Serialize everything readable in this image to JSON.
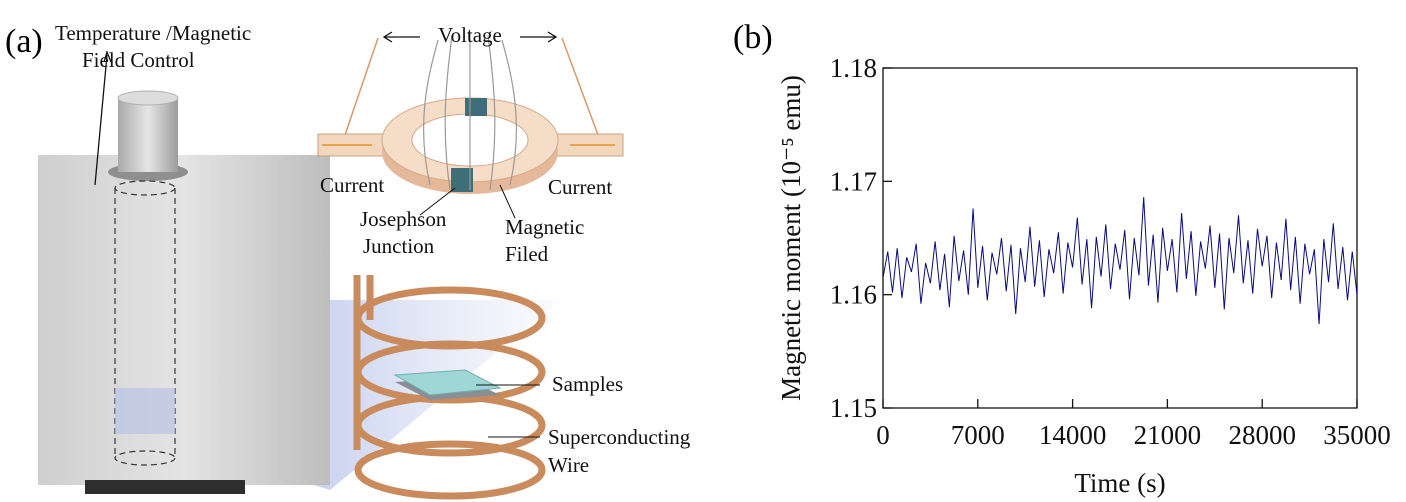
{
  "panel_a": {
    "label": "(a)",
    "control": [
      "Temperature /Magnetic",
      "Field Control"
    ],
    "voltage": "Voltage",
    "current_left": "Current",
    "current_right": "Current",
    "junction": [
      "Josephson",
      "Junction"
    ],
    "field": [
      "Magnetic",
      "Filed"
    ],
    "samples": "Samples",
    "wire": [
      "Superconducting",
      "Wire"
    ]
  },
  "chart_data": {
    "type": "line",
    "panel_label": "(b)",
    "x_label": "Time (s)",
    "y_label": "Magnetic moment (10⁻⁵ emu)",
    "color": "#0b0b7a",
    "x": [
      0,
      350,
      700,
      1050,
      1400,
      1750,
      2100,
      2450,
      2800,
      3150,
      3500,
      3850,
      4200,
      4550,
      4900,
      5250,
      5600,
      5950,
      6300,
      6650,
      7000,
      7350,
      7700,
      8050,
      8400,
      8750,
      9100,
      9450,
      9800,
      10150,
      10500,
      10850,
      11200,
      11550,
      11900,
      12250,
      12600,
      12950,
      13300,
      13650,
      14000,
      14350,
      14700,
      15050,
      15400,
      15750,
      16100,
      16450,
      16800,
      17150,
      17500,
      17850,
      18200,
      18550,
      18900,
      19250,
      19600,
      19950,
      20300,
      20650,
      21000,
      21350,
      21700,
      22050,
      22400,
      22750,
      23100,
      23450,
      23800,
      24150,
      24500,
      24850,
      25200,
      25550,
      25900,
      26250,
      26600,
      26950,
      27300,
      27650,
      28000,
      28350,
      28700,
      29050,
      29400,
      29750,
      30100,
      30450,
      30800,
      31150,
      31500,
      31850,
      32200,
      32550,
      32900,
      33250,
      33600,
      33950,
      34300,
      34650,
      35000
    ],
    "values": [
      1.1615,
      1.1638,
      1.1602,
      1.1641,
      1.1597,
      1.1633,
      1.162,
      1.1645,
      1.1592,
      1.1628,
      1.161,
      1.1647,
      1.1604,
      1.1636,
      1.1589,
      1.1652,
      1.1612,
      1.1639,
      1.16,
      1.1676,
      1.1606,
      1.1643,
      1.1595,
      1.1637,
      1.1618,
      1.165,
      1.1603,
      1.1644,
      1.1583,
      1.1641,
      1.1611,
      1.166,
      1.1607,
      1.1648,
      1.1598,
      1.164,
      1.1619,
      1.1655,
      1.1601,
      1.1646,
      1.1624,
      1.1668,
      1.1609,
      1.1649,
      1.1588,
      1.1651,
      1.1616,
      1.1662,
      1.1605,
      1.1645,
      1.1622,
      1.1657,
      1.1596,
      1.165,
      1.1617,
      1.1686,
      1.1608,
      1.1653,
      1.1593,
      1.1659,
      1.1621,
      1.1649,
      1.1602,
      1.1672,
      1.1614,
      1.1656,
      1.1599,
      1.1647,
      1.1623,
      1.1661,
      1.1606,
      1.1654,
      1.1587,
      1.165,
      1.1619,
      1.167,
      1.161,
      1.1648,
      1.1601,
      1.1658,
      1.1625,
      1.1652,
      1.1597,
      1.1646,
      1.1613,
      1.1667,
      1.1604,
      1.1651,
      1.1592,
      1.1645,
      1.1618,
      1.164,
      1.1574,
      1.1649,
      1.1611,
      1.1663,
      1.1605,
      1.1642,
      1.1595,
      1.1638,
      1.16
    ],
    "xlim": [
      0,
      35000
    ],
    "ylim": [
      1.15,
      1.18
    ],
    "xticks": [
      0,
      7000,
      14000,
      21000,
      28000,
      35000
    ],
    "yticks": [
      1.15,
      1.16,
      1.17,
      1.18
    ]
  }
}
